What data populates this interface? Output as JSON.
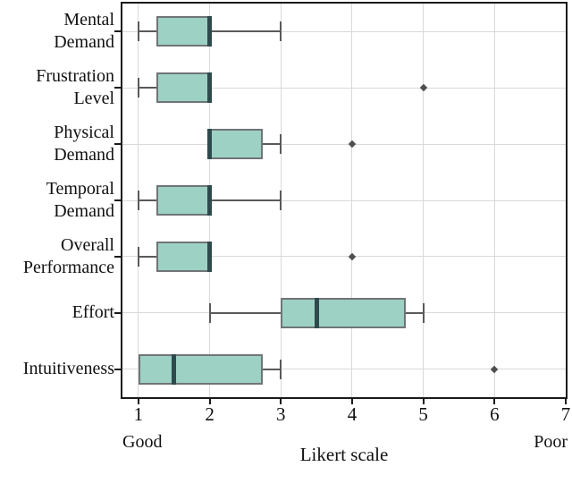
{
  "chart_data": {
    "type": "boxplot_horizontal",
    "title": "",
    "xlabel": "Likert scale",
    "xlim": [
      0.775,
      7
    ],
    "xticks": [
      1,
      2,
      3,
      4,
      5,
      6,
      7
    ],
    "grid": true,
    "axis_annotations": {
      "left": "Good",
      "right": "Poor"
    },
    "categories": [
      {
        "label": "Mental Demand",
        "lines": "Mental\nDemand",
        "whislo": 1,
        "q1": 1.25,
        "med": 2,
        "q3": 2,
        "whishi": 3,
        "fliers": []
      },
      {
        "label": "Frustration Level",
        "lines": "Frustration\nLevel",
        "whislo": 1,
        "q1": 1.25,
        "med": 2,
        "q3": 2,
        "whishi": 2,
        "fliers": [
          5
        ]
      },
      {
        "label": "Physical Demand",
        "lines": "Physical\nDemand",
        "whislo": 2,
        "q1": 2,
        "med": 2,
        "q3": 2.75,
        "whishi": 3,
        "fliers": [
          4
        ]
      },
      {
        "label": "Temporal Demand",
        "lines": "Temporal\nDemand",
        "whislo": 1,
        "q1": 1.25,
        "med": 2,
        "q3": 2,
        "whishi": 3,
        "fliers": []
      },
      {
        "label": "Overall Performance",
        "lines": "Overall\nPerformance",
        "whislo": 1,
        "q1": 1.25,
        "med": 2,
        "q3": 2,
        "whishi": 2,
        "fliers": [
          4
        ]
      },
      {
        "label": "Effort",
        "lines": "Effort",
        "whislo": 2,
        "q1": 3,
        "med": 3.5,
        "q3": 4.75,
        "whishi": 5,
        "fliers": []
      },
      {
        "label": "Intuitiveness",
        "lines": "Intuitiveness",
        "whislo": 1,
        "q1": 1,
        "med": 1.5,
        "q3": 2.75,
        "whishi": 3,
        "fliers": [
          6
        ]
      }
    ],
    "colors": {
      "box_fill": "#9dd1c4",
      "box_edge": "#6f7577",
      "median": "#2e4a4d",
      "whisker": "#5a5a5a",
      "flier": "#4f4f4f",
      "grid": "#d9d9d9",
      "spine": "#1a1a1a",
      "text": "#111111"
    }
  }
}
